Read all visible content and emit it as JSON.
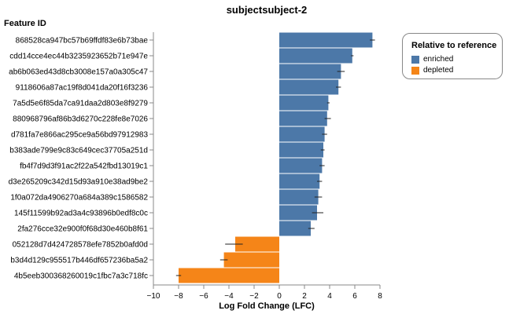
{
  "chart_data": {
    "type": "bar",
    "orientation": "horizontal",
    "title": "subjectsubject-2",
    "ylabel": "Feature ID",
    "xlabel": "Log Fold Change (LFC)",
    "xlim": [
      -10,
      8
    ],
    "xticks": [
      "−10",
      "−8",
      "−6",
      "−4",
      "−2",
      "0",
      "2",
      "4",
      "6",
      "8"
    ],
    "grid": false,
    "legend": {
      "title": "Relative to reference",
      "placement": "top-right",
      "items": [
        {
          "label": "enriched",
          "color": "#4c78a8"
        },
        {
          "label": "depleted",
          "color": "#f58518"
        }
      ]
    },
    "categories": [
      "868528ca947bc57b69ffdf83e6b73bae",
      "cdd14cce4ec44b3235923652b71e947e",
      "ab6b063ed43d8cb3008e157a0a305c47",
      "9118606a87ac19f8d041da20f16f3236",
      "7a5d5e6f85da7ca91daa2d803e8f9279",
      "880968796af86b3d6270c228fe8e7026",
      "d781fa7e866ac295ce9a56bd97912983",
      "b383ade799e9c83c649cec37705a251d",
      "fb4f7d9d3f91ac2f22a542fbd13019c1",
      "d3e265209c342d15d93a910e38ad9be2",
      "1f0a072da4906270a684a389c1586582",
      "145f11599b92ad3a4c93896b0edf8c0c",
      "2fa276cce32e900f0f68d30e460b8f61",
      "052128d7d424728578efe7852b0afd0d",
      "b3d4d129c955517b446df657236ba5a2",
      "4b5eeb300368260019c1fbc7a3c718fc"
    ],
    "values": [
      7.4,
      5.8,
      4.9,
      4.7,
      3.9,
      3.8,
      3.6,
      3.5,
      3.4,
      3.2,
      3.1,
      3.0,
      2.5,
      -3.5,
      -4.4,
      -8.0
    ],
    "error": [
      [
        7.2,
        7.6
      ],
      [
        5.7,
        5.9
      ],
      [
        4.6,
        5.2
      ],
      [
        4.5,
        4.9
      ],
      [
        3.8,
        4.0
      ],
      [
        3.6,
        4.1
      ],
      [
        3.4,
        3.8
      ],
      [
        3.3,
        3.6
      ],
      [
        3.2,
        3.6
      ],
      [
        3.0,
        3.4
      ],
      [
        2.8,
        3.4
      ],
      [
        2.6,
        3.5
      ],
      [
        2.3,
        2.8
      ],
      [
        -4.3,
        -2.9
      ],
      [
        -4.7,
        -4.1
      ],
      [
        -8.2,
        -7.8
      ]
    ],
    "direction": [
      "enriched",
      "enriched",
      "enriched",
      "enriched",
      "enriched",
      "enriched",
      "enriched",
      "enriched",
      "enriched",
      "enriched",
      "enriched",
      "enriched",
      "enriched",
      "depleted",
      "depleted",
      "depleted"
    ]
  }
}
